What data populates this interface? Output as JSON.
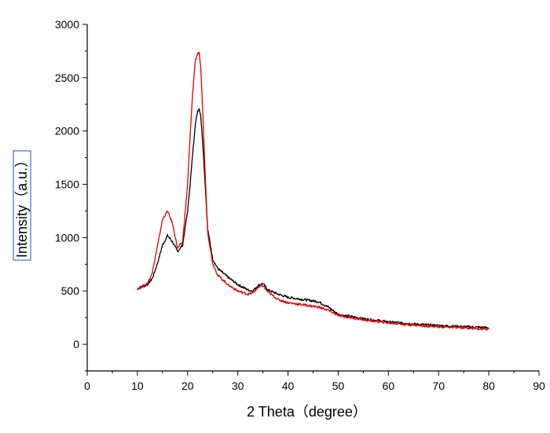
{
  "chart_data": {
    "type": "line",
    "title": "",
    "xlabel": "2 Theta（degree）",
    "ylabel": "Intensity（a.u.）",
    "xlim": [
      0,
      90
    ],
    "ylim": [
      -250,
      3000
    ],
    "x_ticks": [
      0,
      10,
      20,
      30,
      40,
      50,
      60,
      70,
      80,
      90
    ],
    "y_ticks": [
      0,
      500,
      1000,
      1500,
      2000,
      2500,
      3000
    ],
    "grid": false,
    "legend": "none",
    "series": [
      {
        "color": "#000000",
        "x": [
          10,
          12,
          13,
          14,
          15,
          16,
          17,
          18,
          19,
          20,
          20.5,
          21,
          21.5,
          22,
          22.3,
          22.6,
          23,
          23.5,
          24,
          25,
          26,
          28,
          30,
          32,
          33,
          34,
          35,
          36,
          38,
          40,
          43,
          46,
          48,
          50,
          55,
          60,
          65,
          70,
          75,
          80
        ],
        "values": [
          520,
          560,
          620,
          760,
          930,
          1020,
          960,
          870,
          930,
          1250,
          1500,
          1780,
          2050,
          2190,
          2210,
          2150,
          1900,
          1500,
          1080,
          800,
          710,
          630,
          560,
          510,
          500,
          550,
          570,
          510,
          470,
          440,
          420,
          400,
          350,
          280,
          240,
          210,
          190,
          175,
          165,
          155
        ]
      },
      {
        "color": "#e00000",
        "x": [
          10,
          12,
          13,
          14,
          15,
          16,
          17,
          18,
          19,
          20,
          20.5,
          21,
          21.5,
          22,
          22.3,
          22.6,
          23,
          23.5,
          24,
          25,
          26,
          28,
          30,
          32,
          33,
          34,
          35,
          36,
          38,
          40,
          43,
          46,
          48,
          50,
          55,
          60,
          65,
          70,
          75,
          80
        ],
        "values": [
          520,
          570,
          680,
          920,
          1170,
          1250,
          1130,
          900,
          960,
          1500,
          1950,
          2350,
          2650,
          2730,
          2730,
          2600,
          2200,
          1600,
          1050,
          760,
          650,
          560,
          500,
          470,
          480,
          530,
          550,
          490,
          420,
          390,
          370,
          350,
          320,
          270,
          230,
          200,
          180,
          165,
          155,
          140
        ]
      }
    ]
  }
}
